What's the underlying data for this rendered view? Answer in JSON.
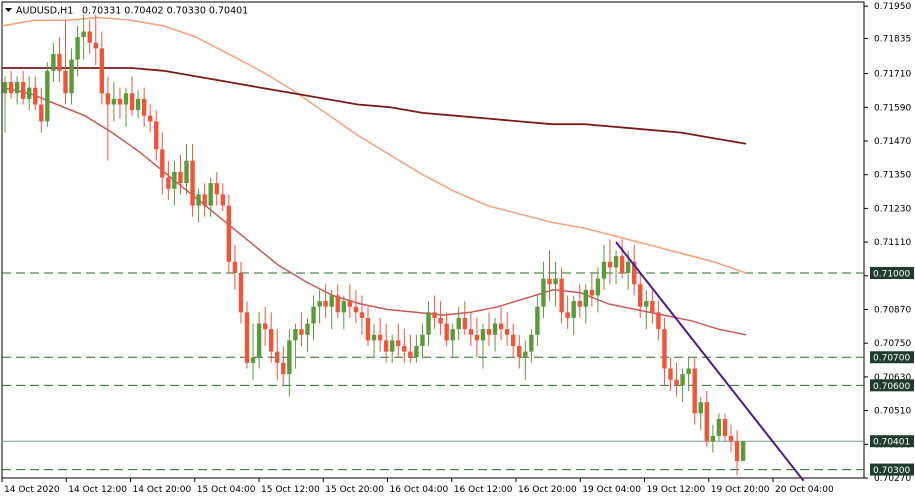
{
  "header": {
    "symbol": "AUDUSD,H1",
    "ohlc": "0.70331 0.70402 0.70330 0.70401",
    "dropdown_icon": "triangle-down-icon"
  },
  "colors": {
    "bull": "#5a9a3a",
    "bear": "#f0553c",
    "ma_fast": "#c85a5a",
    "ma_mid": "#f5a57e",
    "ma_slow": "#7a1a1a",
    "trendline": "#4a1a8c",
    "level_line": "#2a6a2a",
    "level_tag_bg": "#1f3d2e",
    "price_line": "#7a9a9a"
  },
  "chart_data": {
    "type": "candlestick",
    "title": "AUDUSD,H1",
    "ylim": [
      0.7027,
      0.71965
    ],
    "y_ticks": [
      "0.71950",
      "0.71835",
      "0.71710",
      "0.71590",
      "0.71470",
      "0.71350",
      "0.71230",
      "0.71110",
      "0.70990",
      "0.70870",
      "0.70750",
      "0.70630",
      "0.70510",
      "0.70390",
      "0.70270"
    ],
    "x_ticks": [
      "14 Oct 2020",
      "14 Oct 12:00",
      "14 Oct 20:00",
      "15 Oct 04:00",
      "15 Oct 12:00",
      "15 Oct 20:00",
      "16 Oct 04:00",
      "16 Oct 12:00",
      "16 Oct 20:00",
      "19 Oct 04:00",
      "19 Oct 12:00",
      "19 Oct 20:00",
      "20 Oct 04:00"
    ],
    "candles": [
      [
        0.7164,
        0.717,
        0.715,
        0.7168
      ],
      [
        0.7168,
        0.7172,
        0.7162,
        0.7164
      ],
      [
        0.7164,
        0.717,
        0.716,
        0.7168
      ],
      [
        0.7168,
        0.7172,
        0.716,
        0.7162
      ],
      [
        0.7162,
        0.717,
        0.7158,
        0.7166
      ],
      [
        0.7166,
        0.717,
        0.7158,
        0.716
      ],
      [
        0.716,
        0.7166,
        0.715,
        0.7154
      ],
      [
        0.7154,
        0.7175,
        0.7152,
        0.7172
      ],
      [
        0.7172,
        0.7182,
        0.7168,
        0.7178
      ],
      [
        0.7178,
        0.7184,
        0.7168,
        0.7172
      ],
      [
        0.7172,
        0.719,
        0.716,
        0.7164
      ],
      [
        0.7164,
        0.718,
        0.716,
        0.7176
      ],
      [
        0.7176,
        0.7188,
        0.717,
        0.7184
      ],
      [
        0.7184,
        0.7192,
        0.7176,
        0.7186
      ],
      [
        0.7186,
        0.719,
        0.7178,
        0.7182
      ],
      [
        0.7182,
        0.7192,
        0.7174,
        0.718
      ],
      [
        0.718,
        0.7186,
        0.716,
        0.7164
      ],
      [
        0.7164,
        0.717,
        0.714,
        0.716
      ],
      [
        0.716,
        0.7168,
        0.7154,
        0.7162
      ],
      [
        0.7162,
        0.7166,
        0.7155,
        0.716
      ],
      [
        0.716,
        0.7166,
        0.7152,
        0.7164
      ],
      [
        0.7164,
        0.717,
        0.7156,
        0.7158
      ],
      [
        0.7158,
        0.7165,
        0.7155,
        0.7162
      ],
      [
        0.7162,
        0.7166,
        0.7152,
        0.7156
      ],
      [
        0.7156,
        0.716,
        0.715,
        0.7154
      ],
      [
        0.7154,
        0.7158,
        0.714,
        0.7144
      ],
      [
        0.7144,
        0.715,
        0.7128,
        0.7134
      ],
      [
        0.7134,
        0.714,
        0.7126,
        0.713
      ],
      [
        0.713,
        0.714,
        0.7124,
        0.7136
      ],
      [
        0.7136,
        0.7142,
        0.7128,
        0.7132
      ],
      [
        0.7132,
        0.7146,
        0.7128,
        0.714
      ],
      [
        0.714,
        0.7146,
        0.712,
        0.7124
      ],
      [
        0.7124,
        0.713,
        0.7118,
        0.7128
      ],
      [
        0.7128,
        0.7132,
        0.712,
        0.7124
      ],
      [
        0.7124,
        0.7134,
        0.712,
        0.7132
      ],
      [
        0.7132,
        0.7136,
        0.7124,
        0.7128
      ],
      [
        0.7128,
        0.7132,
        0.7122,
        0.7124
      ],
      [
        0.7124,
        0.7128,
        0.71,
        0.7104
      ],
      [
        0.7104,
        0.711,
        0.7094,
        0.71
      ],
      [
        0.71,
        0.7104,
        0.7082,
        0.7086
      ],
      [
        0.7086,
        0.709,
        0.7066,
        0.7068
      ],
      [
        0.7068,
        0.7082,
        0.7062,
        0.707
      ],
      [
        0.707,
        0.7086,
        0.7066,
        0.7082
      ],
      [
        0.7082,
        0.7088,
        0.7074,
        0.708
      ],
      [
        0.708,
        0.7086,
        0.7068,
        0.7072
      ],
      [
        0.7072,
        0.708,
        0.7062,
        0.7068
      ],
      [
        0.7068,
        0.7074,
        0.706,
        0.7064
      ],
      [
        0.7064,
        0.708,
        0.7056,
        0.7076
      ],
      [
        0.7076,
        0.7082,
        0.7066,
        0.708
      ],
      [
        0.708,
        0.7086,
        0.7074,
        0.7078
      ],
      [
        0.7078,
        0.7084,
        0.7072,
        0.7082
      ],
      [
        0.7082,
        0.7092,
        0.7076,
        0.7088
      ],
      [
        0.7088,
        0.7094,
        0.7082,
        0.709
      ],
      [
        0.709,
        0.7096,
        0.7084,
        0.7088
      ],
      [
        0.7088,
        0.7094,
        0.708,
        0.7092
      ],
      [
        0.7092,
        0.7096,
        0.7084,
        0.7086
      ],
      [
        0.7086,
        0.7092,
        0.708,
        0.709
      ],
      [
        0.709,
        0.7096,
        0.7084,
        0.7088
      ],
      [
        0.7088,
        0.7094,
        0.7082,
        0.7086
      ],
      [
        0.7086,
        0.7092,
        0.7078,
        0.7084
      ],
      [
        0.7084,
        0.7088,
        0.7074,
        0.7076
      ],
      [
        0.7076,
        0.7082,
        0.707,
        0.7078
      ],
      [
        0.7078,
        0.7084,
        0.7072,
        0.7076
      ],
      [
        0.7076,
        0.7082,
        0.7068,
        0.7072
      ],
      [
        0.7072,
        0.7078,
        0.7068,
        0.7076
      ],
      [
        0.7076,
        0.7082,
        0.707,
        0.7074
      ],
      [
        0.7074,
        0.708,
        0.7068,
        0.7072
      ],
      [
        0.7072,
        0.7078,
        0.7068,
        0.707
      ],
      [
        0.707,
        0.7078,
        0.7068,
        0.7074
      ],
      [
        0.7074,
        0.7082,
        0.707,
        0.7078
      ],
      [
        0.7078,
        0.709,
        0.7074,
        0.7086
      ],
      [
        0.7086,
        0.7092,
        0.708,
        0.7084
      ],
      [
        0.7084,
        0.709,
        0.7078,
        0.7082
      ],
      [
        0.7082,
        0.7086,
        0.7074,
        0.7076
      ],
      [
        0.7076,
        0.7082,
        0.707,
        0.708
      ],
      [
        0.708,
        0.7088,
        0.7076,
        0.7084
      ],
      [
        0.7084,
        0.709,
        0.7078,
        0.708
      ],
      [
        0.708,
        0.7086,
        0.7074,
        0.7078
      ],
      [
        0.7078,
        0.7084,
        0.707,
        0.7076
      ],
      [
        0.7076,
        0.7082,
        0.7066,
        0.708
      ],
      [
        0.708,
        0.7086,
        0.7074,
        0.7078
      ],
      [
        0.7078,
        0.7084,
        0.7072,
        0.7082
      ],
      [
        0.7082,
        0.7088,
        0.7076,
        0.708
      ],
      [
        0.708,
        0.7086,
        0.7074,
        0.7078
      ],
      [
        0.7078,
        0.7082,
        0.707,
        0.7074
      ],
      [
        0.7074,
        0.7078,
        0.7066,
        0.707
      ],
      [
        0.707,
        0.7076,
        0.7062,
        0.7072
      ],
      [
        0.7072,
        0.708,
        0.7068,
        0.7078
      ],
      [
        0.7078,
        0.7092,
        0.7074,
        0.7088
      ],
      [
        0.7088,
        0.7104,
        0.7084,
        0.7098
      ],
      [
        0.7098,
        0.7108,
        0.709,
        0.7096
      ],
      [
        0.7096,
        0.7104,
        0.7088,
        0.7098
      ],
      [
        0.7098,
        0.7102,
        0.7082,
        0.7086
      ],
      [
        0.7086,
        0.7092,
        0.708,
        0.7084
      ],
      [
        0.7084,
        0.7092,
        0.7078,
        0.709
      ],
      [
        0.709,
        0.7096,
        0.7084,
        0.7088
      ],
      [
        0.7088,
        0.7096,
        0.7082,
        0.7094
      ],
      [
        0.7094,
        0.71,
        0.7088,
        0.7092
      ],
      [
        0.7092,
        0.7102,
        0.7086,
        0.7098
      ],
      [
        0.7098,
        0.711,
        0.7094,
        0.7104
      ],
      [
        0.7104,
        0.7112,
        0.7096,
        0.7102
      ],
      [
        0.7102,
        0.7108,
        0.7096,
        0.7106
      ],
      [
        0.7106,
        0.7112,
        0.7098,
        0.71
      ],
      [
        0.71,
        0.7108,
        0.7094,
        0.7104
      ],
      [
        0.7104,
        0.711,
        0.7092,
        0.7096
      ],
      [
        0.7096,
        0.71,
        0.7084,
        0.7088
      ],
      [
        0.7088,
        0.7094,
        0.708,
        0.709
      ],
      [
        0.709,
        0.7094,
        0.7082,
        0.7086
      ],
      [
        0.7086,
        0.709,
        0.7076,
        0.708
      ],
      [
        0.708,
        0.7084,
        0.706,
        0.7066
      ],
      [
        0.7066,
        0.707,
        0.7058,
        0.7062
      ],
      [
        0.7062,
        0.7068,
        0.7056,
        0.706
      ],
      [
        0.706,
        0.7066,
        0.7054,
        0.7064
      ],
      [
        0.7064,
        0.707,
        0.7058,
        0.7066
      ],
      [
        0.7066,
        0.707,
        0.7046,
        0.705
      ],
      [
        0.705,
        0.7056,
        0.7044,
        0.7054
      ],
      [
        0.7054,
        0.7058,
        0.7038,
        0.704
      ],
      [
        0.704,
        0.7046,
        0.7036,
        0.7042
      ],
      [
        0.7042,
        0.705,
        0.704,
        0.7048
      ],
      [
        0.7048,
        0.705,
        0.704,
        0.7042
      ],
      [
        0.7042,
        0.7046,
        0.7036,
        0.704
      ],
      [
        0.704,
        0.7044,
        0.7028,
        0.7033
      ],
      [
        0.70331,
        0.70402,
        0.7033,
        0.70401
      ]
    ],
    "ma_fast": [
      0.7166,
      0.7164,
      0.716,
      0.7156,
      0.715,
      0.7143,
      0.7135,
      0.7127,
      0.7119,
      0.7111,
      0.7103,
      0.7097,
      0.7092,
      0.7089,
      0.7087,
      0.7086,
      0.7085,
      0.7086,
      0.7088,
      0.7091,
      0.7094,
      0.7093,
      0.7089,
      0.7087,
      0.7085,
      0.7083,
      0.708,
      0.7078
    ],
    "ma_mid": [
      0.7188,
      0.719,
      0.719,
      0.7191,
      0.719,
      0.7188,
      0.7184,
      0.7178,
      0.7172,
      0.7165,
      0.7157,
      0.7149,
      0.7142,
      0.7135,
      0.7129,
      0.7124,
      0.7121,
      0.7118,
      0.7116,
      0.7113,
      0.711,
      0.7107,
      0.7104,
      0.71
    ],
    "ma_slow": [
      0.7173,
      0.7173,
      0.7173,
      0.7173,
      0.7173,
      0.7172,
      0.717,
      0.7168,
      0.7166,
      0.7164,
      0.7162,
      0.716,
      0.7159,
      0.7157,
      0.7156,
      0.7155,
      0.7154,
      0.7153,
      0.7153,
      0.7152,
      0.7151,
      0.715,
      0.7148,
      0.7146
    ],
    "levels": [
      {
        "value": 0.71,
        "label": "0.71000",
        "style": "dashed"
      },
      {
        "value": 0.707,
        "label": "0.70700",
        "style": "dashed"
      },
      {
        "value": 0.706,
        "label": "0.70600",
        "style": "dashed"
      },
      {
        "value": 0.70401,
        "label": "0.70401",
        "style": "solid",
        "current": true
      },
      {
        "value": 0.703,
        "label": "0.70300",
        "style": "dashed"
      }
    ],
    "trendline": {
      "from": {
        "candle": 101,
        "price": 0.7111
      },
      "to": {
        "candle": 132,
        "price": 0.7026
      }
    }
  }
}
